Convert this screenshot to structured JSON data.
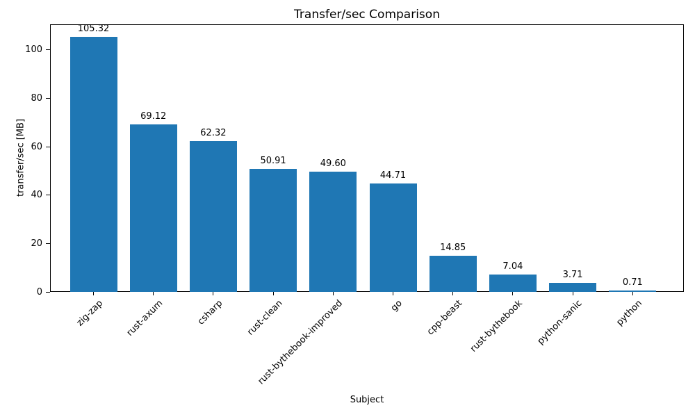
{
  "chart_data": {
    "type": "bar",
    "title": "Transfer/sec Comparison",
    "xlabel": "Subject",
    "ylabel": "transfer/sec [MB]",
    "categories": [
      "zig-zap",
      "rust-axum",
      "csharp",
      "rust-clean",
      "rust-bythebook-improved",
      "go",
      "cpp-beast",
      "rust-bythebook",
      "python-sanic",
      "python"
    ],
    "values": [
      105.32,
      69.12,
      62.32,
      50.91,
      49.6,
      44.71,
      14.85,
      7.04,
      3.71,
      0.71
    ],
    "value_labels": [
      "105.32",
      "69.12",
      "62.32",
      "50.91",
      "49.60",
      "44.71",
      "14.85",
      "7.04",
      "3.71",
      "0.71"
    ],
    "yticks": [
      0,
      20,
      40,
      60,
      80,
      100
    ],
    "ylim": [
      0,
      110.6
    ],
    "bar_color": "#1f77b4",
    "grid": false,
    "legend_position": "none",
    "x_tick_rotation_deg": 45
  }
}
